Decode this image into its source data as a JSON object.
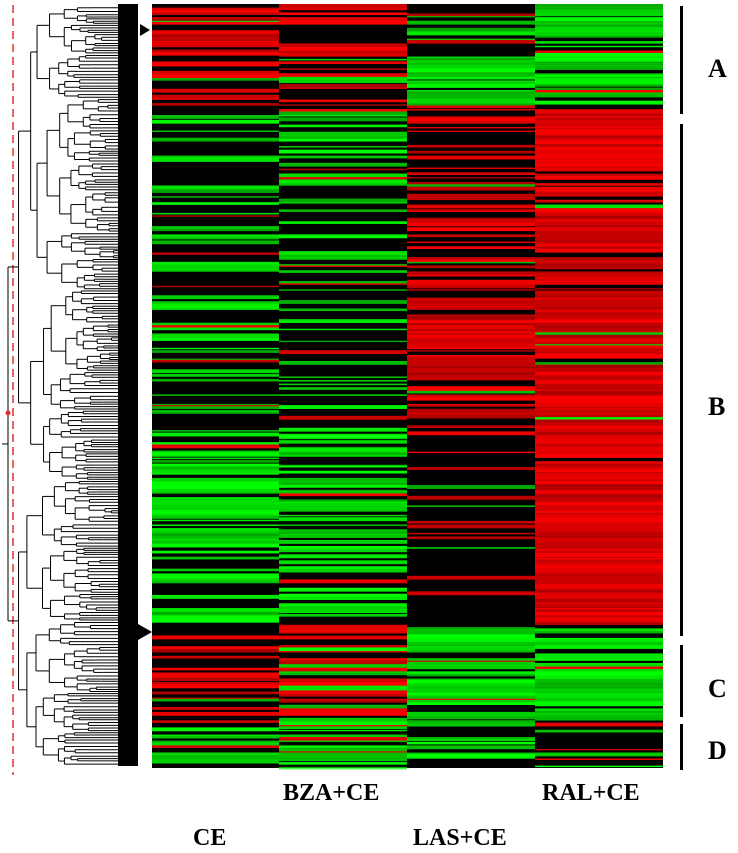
{
  "chart_data": {
    "type": "heatmap",
    "title": "",
    "columns": [
      {
        "name": "CE"
      },
      {
        "name": "BZA+CE"
      },
      {
        "name": "LAS+CE"
      },
      {
        "name": "RAL+CE"
      }
    ],
    "colors": {
      "up": "#ff0000",
      "down": "#00ff00",
      "neutral": "#000000",
      "dendrogram": "#000000",
      "cut_line": "#e03030"
    },
    "row_count": 640,
    "clusters": [
      {
        "label": "A",
        "rows": [
          0,
          84
        ],
        "pattern": {
          "CE": "red/black",
          "BZA+CE": "red/black",
          "LAS+CE": "black then green",
          "RAL+CE": "green"
        }
      },
      {
        "label": "B",
        "rows": [
          85,
          518
        ],
        "pattern": {
          "CE": "black/green",
          "BZA+CE": "black/green",
          "LAS+CE": "red (strong in middle)",
          "RAL+CE": "red"
        }
      },
      {
        "label": "C",
        "rows": [
          519,
          597
        ],
        "pattern": {
          "CE": "red/black",
          "BZA+CE": "red/black",
          "LAS+CE": "green",
          "RAL+CE": "green"
        }
      },
      {
        "label": "D",
        "rows": [
          598,
          639
        ],
        "pattern": {
          "CE": "green",
          "BZA+CE": "green",
          "LAS+CE": "black/green",
          "RAL+CE": "black"
        }
      }
    ],
    "legend": "none",
    "grid": false
  }
}
